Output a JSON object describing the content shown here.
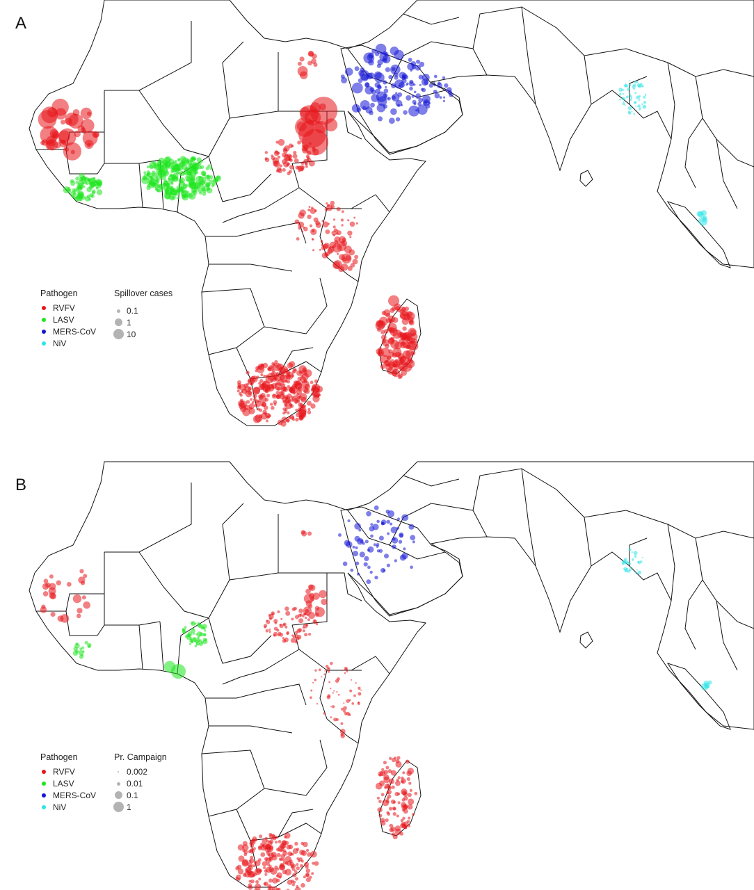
{
  "colors": {
    "RVFV": "#e8161b",
    "LASV": "#1ee61e",
    "MERS-CoV": "#1416d6",
    "NiV": "#2ee3e8",
    "size_legend": "#b3b3b3",
    "borders": "#111111"
  },
  "panels": [
    {
      "letter": "A",
      "legend": {
        "pathogen_title": "Pathogen",
        "pathogens": [
          "RVFV",
          "LASV",
          "MERS-CoV",
          "NiV"
        ],
        "size_title": "Spillover cases",
        "size_labels": [
          "0.1",
          "1",
          "10"
        ]
      }
    },
    {
      "letter": "B",
      "legend": {
        "pathogen_title": "Pathogen",
        "pathogens": [
          "RVFV",
          "LASV",
          "MERS-CoV",
          "NiV"
        ],
        "size_title": "Pr. Campaign",
        "size_labels": [
          "0.002",
          "0.01",
          "0.1",
          "1"
        ]
      }
    }
  ]
}
